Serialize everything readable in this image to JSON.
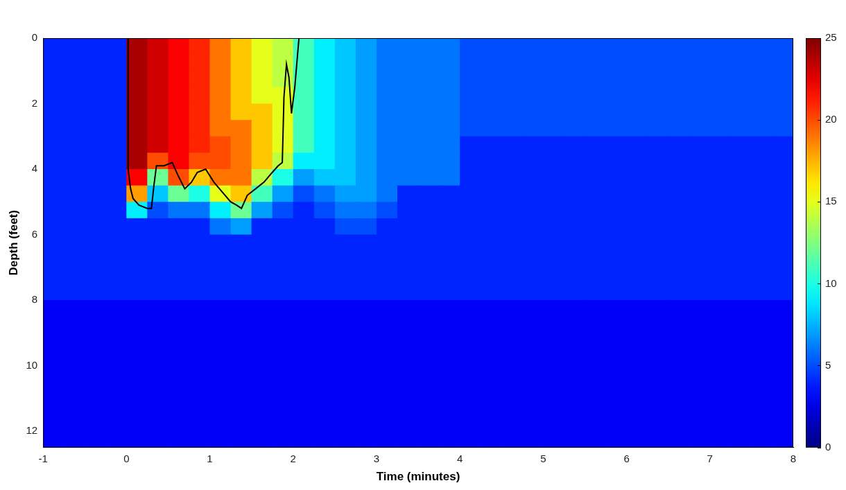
{
  "chart_data": {
    "type": "heatmap",
    "x_label": "Time (minutes)",
    "y_label": "Depth (feet)",
    "xlim": [
      -1,
      8
    ],
    "xticks": [
      -1,
      0,
      1,
      2,
      3,
      4,
      5,
      6,
      7,
      8
    ],
    "ylim": [
      0,
      12.5
    ],
    "yticks": [
      0,
      2,
      4,
      6,
      8,
      10,
      12
    ],
    "grid": false,
    "color_range": [
      0,
      25
    ],
    "color_ticks": [
      0,
      5,
      10,
      15,
      20,
      25
    ],
    "cell_x": [
      -0.875,
      -0.625,
      -0.375,
      -0.125,
      0.125,
      0.375,
      0.625,
      0.875,
      1.125,
      1.375,
      1.625,
      1.875,
      2.125,
      2.375,
      2.625,
      2.875,
      3.125,
      3.375,
      3.625,
      3.875,
      4.125,
      4.375,
      4.625,
      4.875,
      5.125,
      5.375,
      5.625,
      5.875,
      6.125,
      6.375,
      6.625,
      6.875,
      7.125,
      7.375,
      7.625,
      7.875
    ],
    "cell_y": [
      0.25,
      0.75,
      1.25,
      1.75,
      2.25,
      2.75,
      3.25,
      3.75,
      4.25,
      4.75,
      5.25,
      5.75,
      6.25,
      6.75,
      7.25,
      7.75,
      8.25,
      8.75,
      9.25,
      9.75,
      10.25,
      10.75,
      11.25,
      11.75,
      12.25
    ],
    "cells": [
      [
        4,
        4,
        4,
        4,
        24,
        23,
        22,
        21,
        19,
        17,
        15,
        14,
        11,
        9,
        8,
        7,
        6,
        6,
        6,
        6,
        5,
        5,
        5,
        5,
        5,
        5,
        5,
        5,
        5,
        5,
        5,
        5,
        5,
        5,
        5,
        5
      ],
      [
        4,
        4,
        4,
        4,
        24,
        23,
        22,
        21,
        19,
        17,
        15,
        14,
        11,
        9,
        8,
        7,
        6,
        6,
        6,
        6,
        5,
        5,
        5,
        5,
        5,
        5,
        5,
        5,
        5,
        5,
        5,
        5,
        5,
        5,
        5,
        5
      ],
      [
        4,
        4,
        4,
        4,
        24,
        23,
        22,
        21,
        19,
        17,
        15,
        14,
        11,
        9,
        8,
        7,
        6,
        6,
        6,
        6,
        5,
        5,
        5,
        5,
        5,
        5,
        5,
        5,
        5,
        5,
        5,
        5,
        5,
        5,
        5,
        5
      ],
      [
        4,
        4,
        4,
        4,
        24,
        23,
        22,
        21,
        19,
        17,
        15,
        15,
        11,
        9,
        8,
        7,
        6,
        6,
        6,
        6,
        5,
        5,
        5,
        5,
        5,
        5,
        5,
        5,
        5,
        5,
        5,
        5,
        5,
        5,
        5,
        5
      ],
      [
        4,
        4,
        4,
        4,
        24,
        23,
        22,
        21,
        19,
        17,
        17,
        15,
        11,
        9,
        8,
        7,
        6,
        6,
        6,
        6,
        5,
        5,
        5,
        5,
        5,
        5,
        5,
        5,
        5,
        5,
        5,
        5,
        5,
        5,
        5,
        5
      ],
      [
        4,
        4,
        4,
        4,
        24,
        23,
        22,
        21,
        19,
        19,
        17,
        15,
        11,
        9,
        8,
        7,
        6,
        6,
        6,
        6,
        5,
        5,
        5,
        5,
        5,
        5,
        5,
        5,
        5,
        5,
        5,
        5,
        5,
        5,
        5,
        5
      ],
      [
        4,
        4,
        4,
        4,
        24,
        23,
        22,
        21,
        20,
        19,
        17,
        15,
        11,
        9,
        8,
        7,
        6,
        6,
        6,
        6,
        4,
        4,
        4,
        4,
        4,
        4,
        4,
        4,
        4,
        4,
        4,
        4,
        4,
        4,
        4,
        4
      ],
      [
        4,
        4,
        4,
        4,
        24,
        20,
        22,
        20,
        20,
        19,
        17,
        14,
        9,
        9,
        8,
        7,
        6,
        6,
        6,
        6,
        4,
        4,
        4,
        4,
        4,
        4,
        4,
        4,
        4,
        4,
        4,
        4,
        4,
        4,
        4,
        4
      ],
      [
        4,
        4,
        4,
        4,
        22,
        12,
        20,
        17,
        19,
        19,
        14,
        10,
        7,
        8,
        8,
        7,
        6,
        6,
        6,
        6,
        4,
        4,
        4,
        4,
        4,
        4,
        4,
        4,
        4,
        4,
        4,
        4,
        4,
        4,
        4,
        4
      ],
      [
        4,
        4,
        4,
        4,
        18,
        8,
        12,
        10,
        15,
        17,
        11,
        7,
        5,
        6,
        7,
        7,
        6,
        4,
        4,
        4,
        4,
        4,
        4,
        4,
        4,
        4,
        4,
        4,
        4,
        4,
        4,
        4,
        4,
        4,
        4,
        4
      ],
      [
        4,
        4,
        4,
        4,
        9,
        5,
        6,
        6,
        9,
        12,
        7,
        5,
        4,
        5,
        6,
        6,
        5,
        4,
        4,
        4,
        4,
        4,
        4,
        4,
        4,
        4,
        4,
        4,
        4,
        4,
        4,
        4,
        4,
        4,
        4,
        4
      ],
      [
        4,
        4,
        4,
        4,
        4,
        4,
        4,
        4,
        6,
        7,
        4,
        4,
        4,
        4,
        5,
        5,
        4,
        4,
        4,
        4,
        4,
        4,
        4,
        4,
        4,
        4,
        4,
        4,
        4,
        4,
        4,
        4,
        4,
        4,
        4,
        4
      ],
      [
        4,
        4,
        4,
        4,
        4,
        4,
        4,
        4,
        4,
        4,
        4,
        4,
        4,
        4,
        4,
        4,
        4,
        4,
        4,
        4,
        4,
        4,
        4,
        4,
        4,
        4,
        4,
        4,
        4,
        4,
        4,
        4,
        4,
        4,
        4,
        4
      ],
      [
        4,
        4,
        4,
        4,
        4,
        4,
        4,
        4,
        4,
        4,
        4,
        4,
        4,
        4,
        4,
        4,
        4,
        4,
        4,
        4,
        4,
        4,
        4,
        4,
        4,
        4,
        4,
        4,
        4,
        4,
        4,
        4,
        4,
        4,
        4,
        4
      ],
      [
        4,
        4,
        4,
        4,
        4,
        4,
        4,
        4,
        4,
        4,
        4,
        4,
        4,
        4,
        4,
        4,
        4,
        4,
        4,
        4,
        4,
        4,
        4,
        4,
        4,
        4,
        4,
        4,
        4,
        4,
        4,
        4,
        4,
        4,
        4,
        4
      ],
      [
        4,
        4,
        4,
        4,
        4,
        4,
        4,
        4,
        4,
        4,
        4,
        4,
        4,
        4,
        4,
        4,
        4,
        4,
        4,
        4,
        4,
        4,
        4,
        4,
        4,
        4,
        4,
        4,
        4,
        4,
        4,
        4,
        4,
        4,
        4,
        4
      ],
      [
        3,
        3,
        3,
        3,
        3,
        3,
        3,
        3,
        3,
        3,
        3,
        3,
        3,
        3,
        3,
        3,
        3,
        3,
        3,
        3,
        3,
        3,
        3,
        3,
        3,
        3,
        3,
        3,
        3,
        3,
        3,
        3,
        3,
        3,
        3,
        3
      ],
      [
        3,
        3,
        3,
        3,
        3,
        3,
        3,
        3,
        3,
        3,
        3,
        3,
        3,
        3,
        3,
        3,
        3,
        3,
        3,
        3,
        3,
        3,
        3,
        3,
        3,
        3,
        3,
        3,
        3,
        3,
        3,
        3,
        3,
        3,
        3,
        3
      ],
      [
        3,
        3,
        3,
        3,
        3,
        3,
        3,
        3,
        3,
        3,
        3,
        3,
        3,
        3,
        3,
        3,
        3,
        3,
        3,
        3,
        3,
        3,
        3,
        3,
        3,
        3,
        3,
        3,
        3,
        3,
        3,
        3,
        3,
        3,
        3,
        3
      ],
      [
        3,
        3,
        3,
        3,
        3,
        3,
        3,
        3,
        3,
        3,
        3,
        3,
        3,
        3,
        3,
        3,
        3,
        3,
        3,
        3,
        3,
        3,
        3,
        3,
        3,
        3,
        3,
        3,
        3,
        3,
        3,
        3,
        3,
        3,
        3,
        3
      ],
      [
        3,
        3,
        3,
        3,
        3,
        3,
        3,
        3,
        3,
        3,
        3,
        3,
        3,
        3,
        3,
        3,
        3,
        3,
        3,
        3,
        3,
        3,
        3,
        3,
        3,
        3,
        3,
        3,
        3,
        3,
        3,
        3,
        3,
        3,
        3,
        3
      ],
      [
        3,
        3,
        3,
        3,
        3,
        3,
        3,
        3,
        3,
        3,
        3,
        3,
        3,
        3,
        3,
        3,
        3,
        3,
        3,
        3,
        3,
        3,
        3,
        3,
        3,
        3,
        3,
        3,
        3,
        3,
        3,
        3,
        3,
        3,
        3,
        3
      ],
      [
        3,
        3,
        3,
        3,
        3,
        3,
        3,
        3,
        3,
        3,
        3,
        3,
        3,
        3,
        3,
        3,
        3,
        3,
        3,
        3,
        3,
        3,
        3,
        3,
        3,
        3,
        3,
        3,
        3,
        3,
        3,
        3,
        3,
        3,
        3,
        3
      ],
      [
        3,
        3,
        3,
        3,
        3,
        3,
        3,
        3,
        3,
        3,
        3,
        3,
        3,
        3,
        3,
        3,
        3,
        3,
        3,
        3,
        3,
        3,
        3,
        3,
        3,
        3,
        3,
        3,
        3,
        3,
        3,
        3,
        3,
        3,
        3,
        3
      ],
      [
        3,
        3,
        3,
        3,
        3,
        3,
        3,
        3,
        3,
        3,
        3,
        3,
        3,
        3,
        3,
        3,
        3,
        3,
        3,
        3,
        3,
        3,
        3,
        3,
        3,
        3,
        3,
        3,
        3,
        3,
        3,
        3,
        3,
        3,
        3,
        3
      ]
    ],
    "series": [
      {
        "type": "line",
        "color": "#000000",
        "x": [
          0.02,
          0.02,
          0.05,
          0.08,
          0.15,
          0.25,
          0.3,
          0.33,
          0.36,
          0.45,
          0.55,
          0.62,
          0.7,
          0.78,
          0.85,
          0.95,
          1.05,
          1.15,
          1.25,
          1.32,
          1.38,
          1.45,
          1.55,
          1.65,
          1.75,
          1.82,
          1.87,
          1.89,
          1.92,
          1.95,
          1.98,
          2.02,
          2.05,
          2.07
        ],
        "values": [
          0,
          4.0,
          4.6,
          4.9,
          5.1,
          5.2,
          5.2,
          4.5,
          3.9,
          3.9,
          3.8,
          4.2,
          4.6,
          4.4,
          4.1,
          4.0,
          4.4,
          4.7,
          5.0,
          5.1,
          5.2,
          4.8,
          4.6,
          4.4,
          4.1,
          3.9,
          3.8,
          1.8,
          0.8,
          1.2,
          2.3,
          1.5,
          0.6,
          0
        ]
      }
    ]
  }
}
